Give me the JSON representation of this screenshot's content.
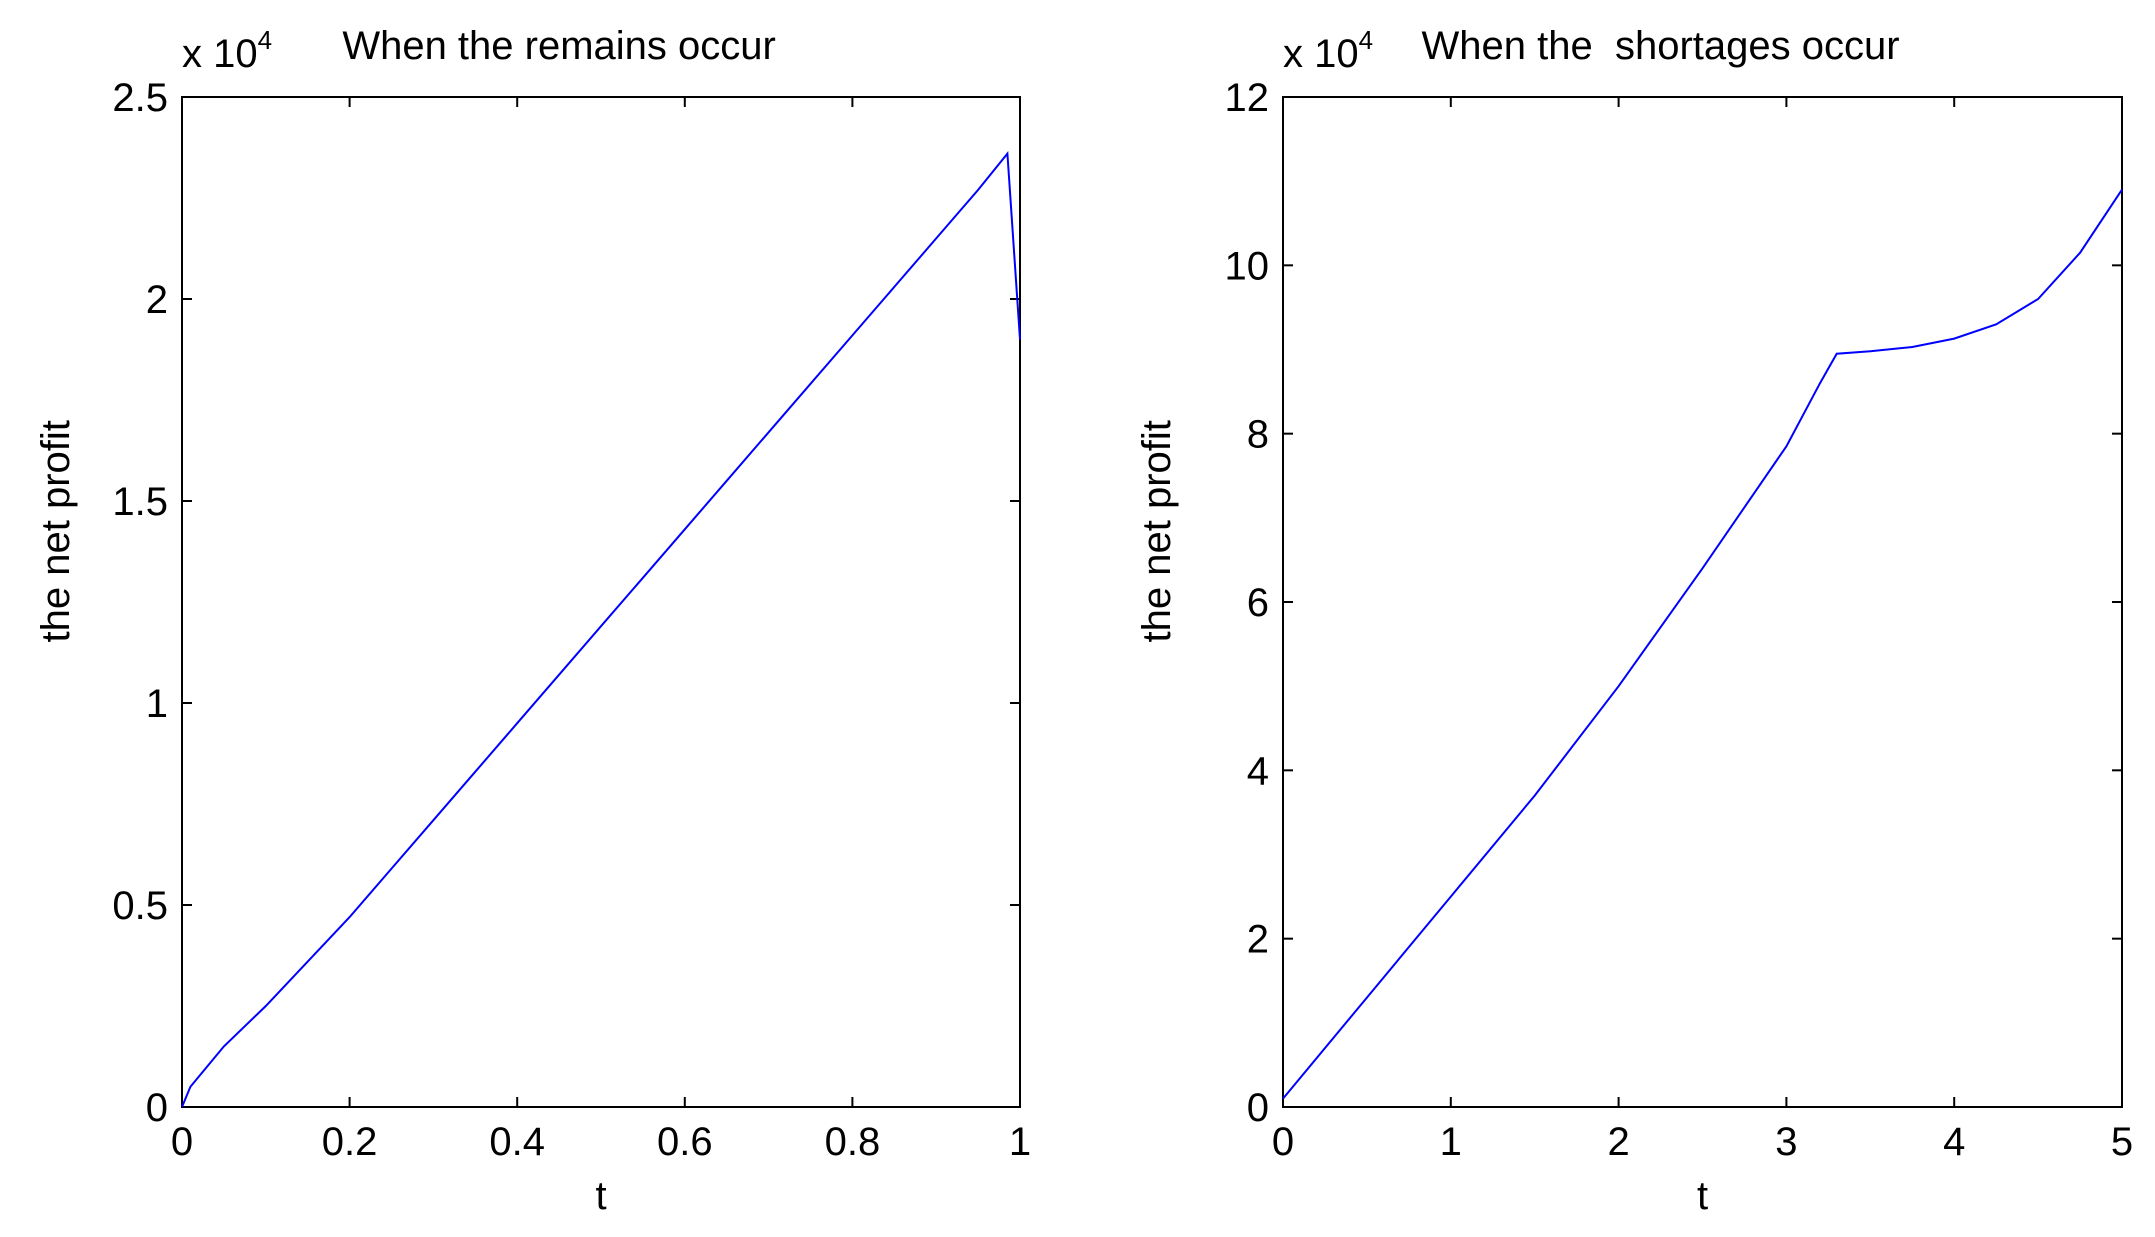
{
  "chart_data": [
    {
      "type": "line",
      "title": "When the remains occur",
      "xlabel": "t",
      "ylabel": "the net profit",
      "y_multiplier": {
        "base": "x 10",
        "exponent": "4"
      },
      "xlim": [
        0,
        1
      ],
      "ylim": [
        0,
        2.5
      ],
      "x_ticks": [
        0,
        0.2,
        0.4,
        0.6,
        0.8,
        1
      ],
      "x_tick_labels": [
        "0",
        "0.2",
        "0.4",
        "0.6",
        "0.8",
        "1"
      ],
      "y_ticks": [
        0,
        0.5,
        1,
        1.5,
        2,
        2.5
      ],
      "y_tick_labels": [
        "0",
        "0.5",
        "1",
        "1.5",
        "2",
        "2.5"
      ],
      "grid": false,
      "line_color": "#0000ff",
      "series": [
        {
          "x": [
            0,
            0.01,
            0.03,
            0.05,
            0.1,
            0.15,
            0.2,
            0.25,
            0.3,
            0.35,
            0.4,
            0.45,
            0.5,
            0.55,
            0.6,
            0.65,
            0.7,
            0.75,
            0.8,
            0.85,
            0.9,
            0.95,
            0.985,
            1.0
          ],
          "values": [
            0,
            0.05,
            0.1,
            0.15,
            0.25,
            0.36,
            0.47,
            0.59,
            0.71,
            0.83,
            0.95,
            1.07,
            1.19,
            1.31,
            1.43,
            1.55,
            1.67,
            1.79,
            1.91,
            2.03,
            2.15,
            2.27,
            2.36,
            1.9
          ]
        }
      ]
    },
    {
      "type": "line",
      "title": "When the  shortages occur",
      "xlabel": "t",
      "ylabel": "the net profit",
      "y_multiplier": {
        "base": "x 10",
        "exponent": "4"
      },
      "xlim": [
        0,
        5
      ],
      "ylim": [
        0,
        12
      ],
      "x_ticks": [
        0,
        1,
        2,
        3,
        4,
        5
      ],
      "x_tick_labels": [
        "0",
        "1",
        "2",
        "3",
        "4",
        "5"
      ],
      "y_ticks": [
        0,
        2,
        4,
        6,
        8,
        10,
        12
      ],
      "y_tick_labels": [
        "0",
        "2",
        "4",
        "6",
        "8",
        "10",
        "12"
      ],
      "grid": false,
      "line_color": "#0000ff",
      "series": [
        {
          "x": [
            0,
            0.5,
            1,
            1.5,
            2,
            2.5,
            3,
            3.2,
            3.3,
            3.5,
            3.75,
            4,
            4.25,
            4.5,
            4.75,
            5
          ],
          "values": [
            0.1,
            1.3,
            2.5,
            3.7,
            5.0,
            6.4,
            7.85,
            8.6,
            8.95,
            8.98,
            9.03,
            9.13,
            9.3,
            9.6,
            10.15,
            10.9
          ]
        }
      ]
    }
  ]
}
